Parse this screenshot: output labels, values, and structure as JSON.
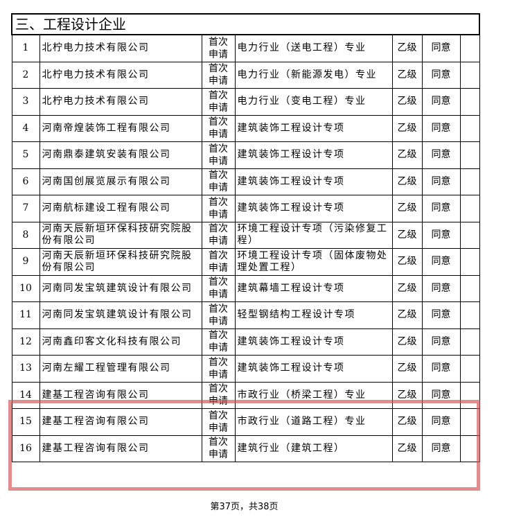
{
  "section_title": "三、工程设计企业",
  "rows": [
    {
      "no": "1",
      "company": "北柠电力技术有限公司",
      "type": "首次申请",
      "qualification": "电力行业（送电工程）专业",
      "level": "乙级",
      "result": "同意"
    },
    {
      "no": "2",
      "company": "北柠电力技术有限公司",
      "type": "首次申请",
      "qualification": "电力行业（新能源发电）专业",
      "level": "乙级",
      "result": "同意"
    },
    {
      "no": "3",
      "company": "北柠电力技术有限公司",
      "type": "首次申请",
      "qualification": "电力行业（变电工程）专业",
      "level": "乙级",
      "result": "同意"
    },
    {
      "no": "4",
      "company": "河南帝煌装饰工程有限公司",
      "type": "首次申请",
      "qualification": "建筑装饰工程设计专项",
      "level": "乙级",
      "result": "同意"
    },
    {
      "no": "5",
      "company": "河南鼎泰建筑安装有限公司",
      "type": "首次申请",
      "qualification": "建筑装饰工程设计专项",
      "level": "乙级",
      "result": "同意"
    },
    {
      "no": "6",
      "company": "河南国创展览展示有限公司",
      "type": "首次申请",
      "qualification": "建筑装饰工程设计专项",
      "level": "乙级",
      "result": "同意"
    },
    {
      "no": "7",
      "company": "河南航标建设工程有限公司",
      "type": "首次申请",
      "qualification": "建筑装饰工程设计专项",
      "level": "乙级",
      "result": "同意"
    },
    {
      "no": "8",
      "company": "河南天辰新垣环保科技研究院股份有限公司",
      "type": "首次申请",
      "qualification": "环境工程设计专项（污染修复工程）",
      "level": "乙级",
      "result": "同意"
    },
    {
      "no": "9",
      "company": "河南天辰新垣环保科技研究院股份有限公司",
      "type": "首次申请",
      "qualification": "环境工程设计专项（固体废物处理处置工程）",
      "level": "乙级",
      "result": "同意"
    },
    {
      "no": "10",
      "company": "河南同发宝筑建筑设计有限公司",
      "type": "首次申请",
      "qualification": "建筑幕墙工程设计专项",
      "level": "乙级",
      "result": "同意"
    },
    {
      "no": "11",
      "company": "河南同发宝筑建筑设计有限公司",
      "type": "首次申请",
      "qualification": "轻型钢结构工程设计专项",
      "level": "乙级",
      "result": "同意"
    },
    {
      "no": "12",
      "company": "河南鑫印客文化科技有限公司",
      "type": "首次申请",
      "qualification": "建筑装饰工程设计专项",
      "level": "乙级",
      "result": "同意"
    },
    {
      "no": "13",
      "company": "河南左耀工程管理有限公司",
      "type": "首次申请",
      "qualification": "建筑装饰工程设计专项",
      "level": "乙级",
      "result": "同意"
    },
    {
      "no": "14",
      "company": "建基工程咨询有限公司",
      "type": "首次申请",
      "qualification": "市政行业（桥梁工程）专业",
      "level": "乙级",
      "result": "同意"
    },
    {
      "no": "15",
      "company": "建基工程咨询有限公司",
      "type": "首次申请",
      "qualification": "市政行业（道路工程）专业",
      "level": "乙级",
      "result": "同意"
    },
    {
      "no": "16",
      "company": "建基工程咨询有限公司",
      "type": "首次申请",
      "qualification": "建筑行业（建筑工程）",
      "level": "乙级",
      "result": "同意"
    }
  ],
  "highlight_color": "#d25050",
  "footer": {
    "page_label": "第37页，共38页"
  }
}
